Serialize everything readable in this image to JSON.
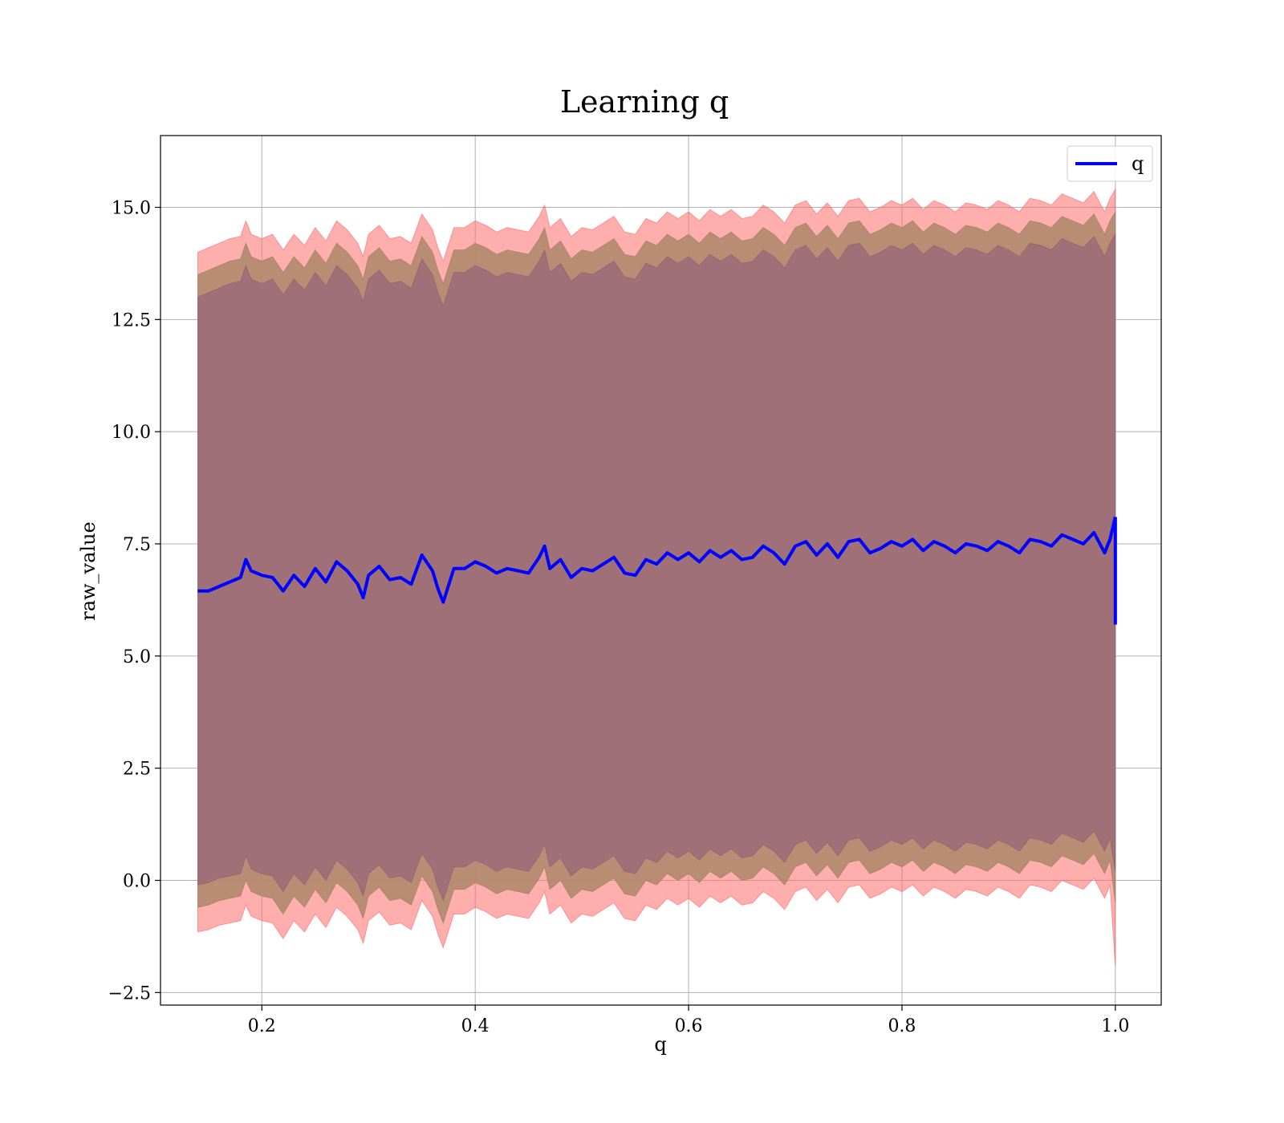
{
  "chart_data": {
    "type": "area",
    "title": "Learning q",
    "xlabel": "q",
    "ylabel": "raw_value",
    "xlim": [
      0.105,
      1.043
    ],
    "ylim": [
      -2.78,
      16.6
    ],
    "x_ticks": [
      0.2,
      0.4,
      0.6,
      0.8,
      1.0
    ],
    "x_tick_labels": [
      "0.2",
      "0.4",
      "0.6",
      "0.8",
      "1.0"
    ],
    "y_ticks": [
      -2.5,
      0.0,
      2.5,
      5.0,
      7.5,
      10.0,
      12.5,
      15.0
    ],
    "y_tick_labels": [
      "−2.5",
      "0.0",
      "2.5",
      "5.0",
      "7.5",
      "10.0",
      "12.5",
      "15.0"
    ],
    "grid": true,
    "legend": {
      "position": "top-right",
      "entries": [
        {
          "label": "q",
          "color": "#0000ff"
        }
      ]
    },
    "colors": {
      "line": "#0000ff",
      "band_outer": "#ff6b6b",
      "band_mid": "#b08a6e",
      "band_inner": "#a07078"
    },
    "series": [
      {
        "name": "q",
        "style": "line",
        "x": [
          0.14,
          0.15,
          0.16,
          0.17,
          0.18,
          0.185,
          0.19,
          0.2,
          0.21,
          0.22,
          0.23,
          0.24,
          0.25,
          0.26,
          0.27,
          0.28,
          0.29,
          0.295,
          0.3,
          0.31,
          0.32,
          0.33,
          0.34,
          0.35,
          0.36,
          0.365,
          0.37,
          0.38,
          0.39,
          0.4,
          0.41,
          0.42,
          0.43,
          0.44,
          0.45,
          0.46,
          0.465,
          0.47,
          0.48,
          0.49,
          0.5,
          0.51,
          0.52,
          0.53,
          0.54,
          0.55,
          0.56,
          0.57,
          0.58,
          0.59,
          0.6,
          0.61,
          0.62,
          0.63,
          0.64,
          0.65,
          0.66,
          0.67,
          0.68,
          0.69,
          0.7,
          0.71,
          0.72,
          0.73,
          0.74,
          0.75,
          0.76,
          0.77,
          0.78,
          0.79,
          0.8,
          0.81,
          0.82,
          0.83,
          0.84,
          0.85,
          0.86,
          0.87,
          0.88,
          0.89,
          0.9,
          0.91,
          0.92,
          0.93,
          0.94,
          0.95,
          0.96,
          0.97,
          0.98,
          0.99,
          0.995,
          1.0
        ],
        "values": [
          6.45,
          6.45,
          6.55,
          6.65,
          6.75,
          7.15,
          6.9,
          6.8,
          6.75,
          6.45,
          6.8,
          6.55,
          6.95,
          6.65,
          7.1,
          6.9,
          6.6,
          6.3,
          6.8,
          7.0,
          6.7,
          6.75,
          6.6,
          7.25,
          6.9,
          6.5,
          6.2,
          6.95,
          6.95,
          7.1,
          7.0,
          6.85,
          6.95,
          6.9,
          6.85,
          7.2,
          7.45,
          6.95,
          7.15,
          6.75,
          6.95,
          6.9,
          7.05,
          7.2,
          6.85,
          6.8,
          7.15,
          7.05,
          7.3,
          7.15,
          7.3,
          7.1,
          7.35,
          7.2,
          7.35,
          7.15,
          7.2,
          7.45,
          7.3,
          7.05,
          7.45,
          7.55,
          7.25,
          7.5,
          7.2,
          7.55,
          7.6,
          7.3,
          7.4,
          7.55,
          7.45,
          7.6,
          7.35,
          7.55,
          7.45,
          7.3,
          7.5,
          7.45,
          7.35,
          7.55,
          7.45,
          7.3,
          7.6,
          7.55,
          7.45,
          7.7,
          7.6,
          7.5,
          7.75,
          7.3,
          7.6,
          8.1
        ]
      },
      {
        "name": "",
        "style": "band",
        "role": "outer_upper",
        "values": [
          14.0,
          14.1,
          14.2,
          14.3,
          14.35,
          14.7,
          14.4,
          14.3,
          14.4,
          14.05,
          14.4,
          14.15,
          14.55,
          14.25,
          14.7,
          14.5,
          14.2,
          13.9,
          14.4,
          14.6,
          14.3,
          14.35,
          14.2,
          14.85,
          14.5,
          14.1,
          13.8,
          14.55,
          14.55,
          14.7,
          14.6,
          14.45,
          14.55,
          14.5,
          14.45,
          14.8,
          15.05,
          14.55,
          14.75,
          14.35,
          14.55,
          14.5,
          14.65,
          14.8,
          14.45,
          14.4,
          14.75,
          14.65,
          14.9,
          14.75,
          14.9,
          14.7,
          14.95,
          14.8,
          14.95,
          14.75,
          14.8,
          15.05,
          14.9,
          14.65,
          15.05,
          15.15,
          14.85,
          15.1,
          14.8,
          15.15,
          15.2,
          14.9,
          15.0,
          15.15,
          15.05,
          15.2,
          14.95,
          15.15,
          15.05,
          14.9,
          15.1,
          15.05,
          14.95,
          15.15,
          15.05,
          14.9,
          15.2,
          15.15,
          15.05,
          15.3,
          15.2,
          15.1,
          15.35,
          14.9,
          15.2,
          15.4
        ]
      },
      {
        "name": "",
        "style": "band",
        "role": "outer_lower",
        "values": [
          -1.15,
          -1.1,
          -1.0,
          -0.95,
          -0.9,
          -0.55,
          -0.8,
          -0.9,
          -0.95,
          -1.3,
          -0.9,
          -1.15,
          -0.75,
          -1.05,
          -0.6,
          -0.8,
          -1.1,
          -1.4,
          -0.9,
          -0.7,
          -1.0,
          -0.95,
          -1.1,
          -0.45,
          -0.8,
          -1.2,
          -1.5,
          -0.75,
          -0.75,
          -0.6,
          -0.7,
          -0.85,
          -0.75,
          -0.8,
          -0.85,
          -0.5,
          -0.25,
          -0.75,
          -0.55,
          -0.95,
          -0.75,
          -0.8,
          -0.65,
          -0.5,
          -0.85,
          -0.9,
          -0.55,
          -0.65,
          -0.4,
          -0.55,
          -0.4,
          -0.6,
          -0.35,
          -0.5,
          -0.35,
          -0.55,
          -0.5,
          -0.25,
          -0.4,
          -0.65,
          -0.25,
          -0.15,
          -0.45,
          -0.2,
          -0.5,
          -0.15,
          -0.1,
          -0.4,
          -0.3,
          -0.15,
          -0.25,
          -0.1,
          -0.35,
          -0.15,
          -0.25,
          -0.4,
          -0.2,
          -0.25,
          -0.35,
          -0.15,
          -0.25,
          -0.4,
          -0.1,
          -0.15,
          -0.25,
          0.0,
          -0.1,
          -0.2,
          0.05,
          -0.4,
          -0.1,
          -1.9
        ]
      },
      {
        "name": "",
        "style": "band",
        "role": "mid_upper",
        "values": [
          13.5,
          13.6,
          13.7,
          13.8,
          13.85,
          14.2,
          13.9,
          13.8,
          13.9,
          13.55,
          13.9,
          13.65,
          14.05,
          13.75,
          14.2,
          14.0,
          13.7,
          13.4,
          13.9,
          14.1,
          13.8,
          13.85,
          13.7,
          14.35,
          14.0,
          13.6,
          13.3,
          14.05,
          14.05,
          14.2,
          14.1,
          13.95,
          14.05,
          14.0,
          13.95,
          14.3,
          14.55,
          14.05,
          14.25,
          13.85,
          14.05,
          14.0,
          14.15,
          14.3,
          13.95,
          13.9,
          14.25,
          14.15,
          14.4,
          14.25,
          14.4,
          14.2,
          14.45,
          14.3,
          14.45,
          14.25,
          14.3,
          14.55,
          14.4,
          14.15,
          14.55,
          14.65,
          14.35,
          14.6,
          14.3,
          14.65,
          14.7,
          14.4,
          14.5,
          14.65,
          14.55,
          14.7,
          14.45,
          14.65,
          14.55,
          14.4,
          14.6,
          14.55,
          14.45,
          14.65,
          14.55,
          14.4,
          14.7,
          14.65,
          14.55,
          14.8,
          14.7,
          14.6,
          14.85,
          14.4,
          14.7,
          14.9
        ]
      },
      {
        "name": "",
        "style": "band",
        "role": "mid_lower",
        "values": [
          -0.6,
          -0.55,
          -0.45,
          -0.4,
          -0.35,
          0.0,
          -0.25,
          -0.35,
          -0.4,
          -0.75,
          -0.35,
          -0.6,
          -0.2,
          -0.5,
          -0.05,
          -0.25,
          -0.55,
          -0.85,
          -0.35,
          -0.15,
          -0.45,
          -0.4,
          -0.55,
          0.1,
          -0.25,
          -0.65,
          -0.95,
          -0.2,
          -0.2,
          -0.05,
          -0.15,
          -0.3,
          -0.2,
          -0.25,
          -0.3,
          0.05,
          0.3,
          -0.2,
          0.0,
          -0.4,
          -0.2,
          -0.25,
          -0.1,
          0.05,
          -0.3,
          -0.35,
          0.0,
          -0.1,
          0.15,
          0.0,
          0.15,
          -0.05,
          0.2,
          0.05,
          0.2,
          0.0,
          0.05,
          0.3,
          0.15,
          -0.1,
          0.3,
          0.4,
          0.1,
          0.35,
          0.05,
          0.4,
          0.45,
          0.15,
          0.25,
          0.4,
          0.3,
          0.45,
          0.2,
          0.4,
          0.3,
          0.15,
          0.35,
          0.3,
          0.2,
          0.4,
          0.3,
          0.15,
          0.45,
          0.4,
          0.3,
          0.55,
          0.45,
          0.35,
          0.6,
          0.15,
          0.45,
          -0.5
        ]
      },
      {
        "name": "",
        "style": "band",
        "role": "inner_upper",
        "values": [
          13.0,
          13.1,
          13.2,
          13.3,
          13.35,
          13.7,
          13.4,
          13.3,
          13.4,
          13.05,
          13.4,
          13.15,
          13.55,
          13.25,
          13.7,
          13.5,
          13.2,
          12.9,
          13.4,
          13.6,
          13.3,
          13.35,
          13.2,
          13.85,
          13.5,
          13.1,
          12.8,
          13.55,
          13.55,
          13.7,
          13.6,
          13.45,
          13.55,
          13.5,
          13.45,
          13.8,
          14.05,
          13.55,
          13.75,
          13.35,
          13.55,
          13.5,
          13.65,
          13.8,
          13.45,
          13.4,
          13.75,
          13.65,
          13.9,
          13.75,
          13.9,
          13.7,
          13.95,
          13.8,
          13.95,
          13.75,
          13.8,
          14.05,
          13.9,
          13.65,
          14.05,
          14.15,
          13.85,
          14.1,
          13.8,
          14.15,
          14.2,
          13.9,
          14.0,
          14.15,
          14.05,
          14.2,
          13.95,
          14.15,
          14.05,
          13.9,
          14.1,
          14.05,
          13.95,
          14.15,
          14.05,
          13.9,
          14.2,
          14.15,
          14.05,
          14.3,
          14.2,
          14.1,
          14.35,
          13.9,
          14.2,
          14.4
        ]
      },
      {
        "name": "",
        "style": "band",
        "role": "inner_lower",
        "values": [
          -0.1,
          -0.05,
          0.05,
          0.1,
          0.15,
          0.55,
          0.25,
          0.15,
          0.1,
          -0.25,
          0.15,
          -0.1,
          0.3,
          0.0,
          0.45,
          0.25,
          -0.05,
          -0.35,
          0.15,
          0.35,
          0.05,
          0.1,
          -0.05,
          0.6,
          0.25,
          -0.15,
          -0.45,
          0.3,
          0.3,
          0.45,
          0.35,
          0.2,
          0.3,
          0.25,
          0.2,
          0.55,
          0.8,
          0.3,
          0.5,
          0.1,
          0.3,
          0.25,
          0.4,
          0.55,
          0.2,
          0.15,
          0.5,
          0.4,
          0.65,
          0.5,
          0.65,
          0.45,
          0.7,
          0.55,
          0.7,
          0.5,
          0.55,
          0.8,
          0.65,
          0.4,
          0.8,
          0.9,
          0.6,
          0.85,
          0.55,
          0.9,
          0.95,
          0.65,
          0.75,
          0.9,
          0.8,
          0.95,
          0.7,
          0.9,
          0.8,
          0.65,
          0.85,
          0.8,
          0.7,
          0.9,
          0.8,
          0.65,
          0.95,
          0.9,
          0.8,
          1.05,
          0.95,
          0.85,
          1.1,
          0.65,
          0.95,
          0.2
        ]
      }
    ]
  }
}
